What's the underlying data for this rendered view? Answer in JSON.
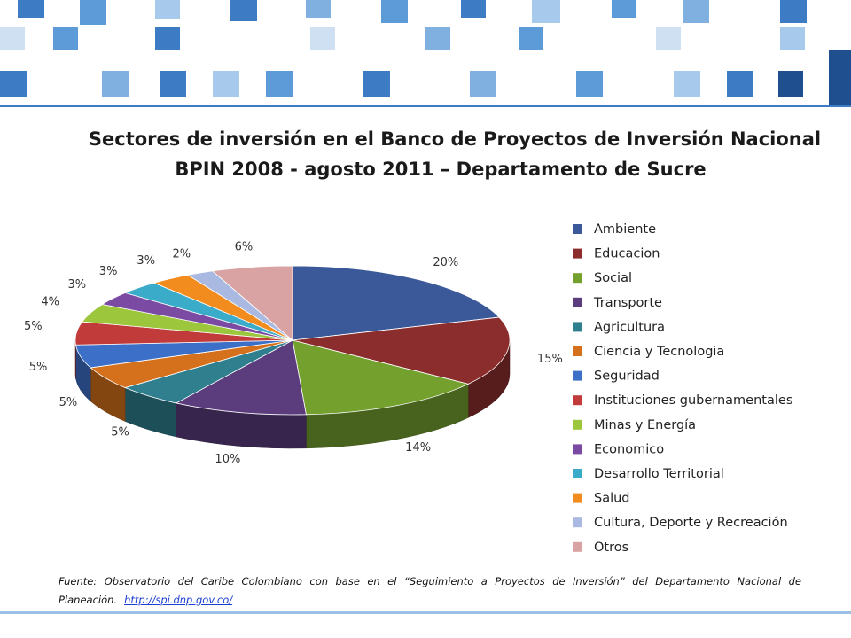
{
  "chart_data": {
    "type": "pie",
    "title": "Sectores de inversión en el Banco de Proyectos de Inversión Nacional",
    "subtitle": "BPIN 2008 -  agosto 2011 – Departamento de Sucre",
    "categories": [
      "Ambiente",
      "Educacion",
      "Social",
      "Transporte",
      "Agricultura",
      "Ciencia y Tecnologia",
      "Seguridad",
      "Instituciones gubernamentales",
      "Minas y Energía",
      "Economico",
      "Desarrollo Territorial",
      "Salud",
      "Cultura, Deporte y Recreación",
      "Otros"
    ],
    "values": [
      20,
      15,
      14,
      10,
      5,
      5,
      5,
      5,
      4,
      3,
      3,
      3,
      2,
      6
    ],
    "value_labels": [
      "20%",
      "15%",
      "14%",
      "10%",
      "5%",
      "5%",
      "5%",
      "5%",
      "4%",
      "3%",
      "3%",
      "3%",
      "2%",
      "6%"
    ],
    "colors": [
      "#3b5998",
      "#8c2d2d",
      "#74a02e",
      "#5b3c7d",
      "#2f7f8f",
      "#d5711c",
      "#3c6fc8",
      "#c23b3b",
      "#9cc63b",
      "#7b4ba3",
      "#3aabc8",
      "#f28c1e",
      "#a9b9e2",
      "#d9a3a3"
    ],
    "legend": "right"
  },
  "source": "Fuente: Observatorio del Caribe Colombiano con base en el “Seguimiento a Proyectos de Inversión” del Departamento Nacional de Planeación.",
  "link": "http://spi.dnp.gov.co/"
}
